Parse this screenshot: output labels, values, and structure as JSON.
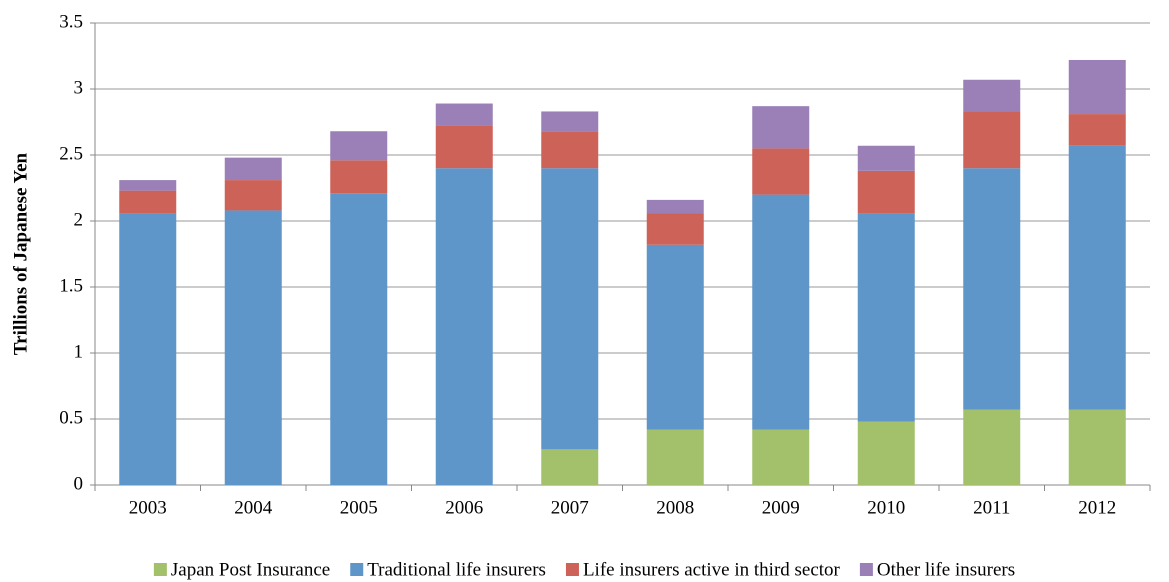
{
  "chart_data": {
    "type": "stacked_bar",
    "y_label": "Trillions of Japanese Yen",
    "categories": [
      "2003",
      "2004",
      "2005",
      "2006",
      "2007",
      "2008",
      "2009",
      "2010",
      "2011",
      "2012"
    ],
    "series": [
      {
        "name": "Japan Post Insurance",
        "color": "#a2c16a",
        "values": [
          0,
          0,
          0,
          0,
          0.27,
          0.42,
          0.42,
          0.48,
          0.57,
          0.57
        ]
      },
      {
        "name": "Traditional life insurers",
        "color": "#5e96c9",
        "values": [
          2.06,
          2.08,
          2.21,
          2.4,
          2.13,
          1.4,
          1.78,
          1.58,
          1.83,
          2.0
        ]
      },
      {
        "name": "Life insurers active in third sector",
        "color": "#cd6258",
        "values": [
          0.17,
          0.23,
          0.25,
          0.32,
          0.28,
          0.24,
          0.35,
          0.32,
          0.43,
          0.24
        ]
      },
      {
        "name": "Other life insurers",
        "color": "#9a80b7",
        "values": [
          0.08,
          0.17,
          0.22,
          0.17,
          0.15,
          0.1,
          0.32,
          0.19,
          0.24,
          0.41
        ]
      }
    ],
    "ylim": [
      0,
      3.5
    ],
    "yticks": [
      0,
      0.5,
      1,
      1.5,
      2,
      2.5,
      3,
      3.5
    ],
    "grid": true,
    "legend": "bottom"
  }
}
